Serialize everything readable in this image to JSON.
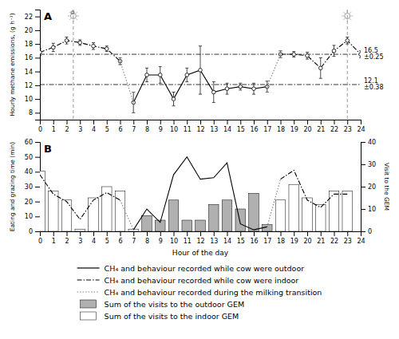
{
  "chart_data": [
    {
      "type": "line",
      "title": "A",
      "y_label": "Hourly methane emissions, (g h⁻¹)",
      "x": [
        0,
        1,
        2,
        3,
        4,
        5,
        6,
        7,
        8,
        9,
        10,
        11,
        12,
        13,
        14,
        15,
        16,
        17,
        18,
        19,
        20,
        21,
        22,
        23,
        24
      ],
      "xlim": [
        0,
        24
      ],
      "xticks": [
        0,
        1,
        2,
        3,
        4,
        5,
        6,
        7,
        8,
        9,
        10,
        11,
        12,
        13,
        14,
        15,
        16,
        17,
        18,
        19,
        20,
        21,
        22,
        23,
        24
      ],
      "ylim": [
        7,
        23
      ],
      "yticks": [
        8,
        10,
        12,
        14,
        16,
        18,
        20,
        22
      ],
      "series": [
        {
          "color": "black",
          "line_style": "solid",
          "marker": "circle",
          "values": [
            null,
            null,
            null,
            null,
            null,
            null,
            null,
            9.5,
            13.5,
            13.5,
            10.0,
            13.5,
            14.2,
            11.0,
            11.5,
            11.8,
            11.5,
            11.8,
            null,
            null,
            null,
            null,
            null,
            null,
            null
          ],
          "errors": [
            null,
            null,
            null,
            null,
            null,
            null,
            null,
            1.5,
            1.0,
            1.2,
            1.0,
            1.0,
            3.5,
            1.5,
            0.8,
            0.5,
            0.8,
            0.8,
            null,
            null,
            null,
            null,
            null,
            null,
            null
          ]
        },
        {
          "color": "black",
          "line_style": "dashdot",
          "marker": "circle",
          "values": [
            16.8,
            17.5,
            18.5,
            18.2,
            17.7,
            17.3,
            15.5,
            null,
            null,
            null,
            null,
            null,
            null,
            null,
            null,
            null,
            null,
            null,
            16.5,
            16.5,
            16.3,
            14.5,
            17.0,
            18.5,
            16.5
          ],
          "errors": [
            0.5,
            0.6,
            0.5,
            0.4,
            0.5,
            0.4,
            0.5,
            null,
            null,
            null,
            null,
            null,
            null,
            null,
            null,
            null,
            null,
            null,
            0.5,
            0.4,
            0.5,
            1.5,
            0.8,
            0.5,
            0.5
          ]
        },
        {
          "color": "gray",
          "line_style": "dotted",
          "marker": "none",
          "values": [
            null,
            null,
            null,
            null,
            null,
            null,
            15.5,
            9.5,
            null,
            null,
            null,
            null,
            null,
            null,
            null,
            null,
            null,
            11.8,
            16.5,
            null,
            null,
            null,
            null,
            null,
            null
          ],
          "errors": [
            null,
            null,
            null,
            null,
            null,
            null,
            0.5,
            1.5,
            null,
            null,
            null,
            null,
            null,
            null,
            null,
            null,
            null,
            0.8,
            0.5,
            null,
            null,
            null,
            null,
            null,
            null
          ]
        }
      ],
      "reference_lines": [
        {
          "axis": "y",
          "value": 16.5,
          "label": "16.5\n±0.25"
        },
        {
          "axis": "y",
          "value": 12.1,
          "label": "12.1\n±0.38"
        },
        {
          "axis": "x",
          "value": 2.5
        },
        {
          "axis": "x",
          "value": 23.0
        }
      ],
      "annotations": [
        {
          "text": "✿",
          "x": 2.45,
          "y": 22.5
        }
      ]
    },
    {
      "type": "line",
      "title": "B",
      "x_label": "Hour of the day",
      "y_label": "Eating and grazing time (min)",
      "y2_label": "Visit to the GEM",
      "x": [
        0,
        1,
        2,
        3,
        4,
        5,
        6,
        7,
        8,
        9,
        10,
        11,
        12,
        13,
        14,
        15,
        16,
        17,
        18,
        19,
        20,
        21,
        22,
        23
      ],
      "xlim": [
        0,
        24
      ],
      "xticks": [
        0,
        1,
        2,
        3,
        4,
        5,
        6,
        7,
        8,
        9,
        10,
        11,
        12,
        13,
        14,
        15,
        16,
        17,
        18,
        19,
        20,
        21,
        22,
        23,
        24
      ],
      "ylim": [
        0,
        60
      ],
      "yticks": [
        0,
        10,
        20,
        30,
        40,
        50,
        60
      ],
      "y2lim": [
        0,
        40
      ],
      "y2ticks": [
        0,
        10,
        20,
        30,
        40
      ],
      "legend": "bottom",
      "series": [
        {
          "name": "CH₄ and behaviour recorded while cow were outdoor",
          "type": "line",
          "color": "black",
          "line_style": "solid",
          "values": [
            null,
            null,
            null,
            null,
            null,
            null,
            null,
            1,
            15,
            6,
            38,
            50,
            35,
            36,
            46,
            5,
            1,
            3,
            null,
            null,
            null,
            null,
            null,
            null
          ]
        },
        {
          "name": "CH₄ and behaviour recorded while cow were indoor",
          "type": "line",
          "color": "black",
          "line_style": "dashdot",
          "values": [
            38,
            25,
            20,
            8,
            21,
            26,
            21,
            null,
            null,
            null,
            null,
            null,
            null,
            null,
            null,
            null,
            null,
            null,
            35,
            41,
            21,
            16,
            25,
            25
          ]
        },
        {
          "name": "CH₄ and behaviour recorded during the milking transition",
          "type": "line",
          "color": "gray",
          "line_style": "dotted",
          "values": [
            null,
            null,
            null,
            null,
            null,
            null,
            21,
            1,
            null,
            null,
            null,
            null,
            null,
            null,
            null,
            null,
            null,
            3,
            35,
            null,
            null,
            null,
            null,
            null
          ]
        },
        {
          "name": "Sum of the visits to the outdoor GEM",
          "type": "bar",
          "axis": "y2",
          "color": "#b0b0b0",
          "values": [
            0,
            0,
            0,
            0,
            0,
            0,
            0,
            0,
            7,
            5,
            14,
            5,
            5,
            12,
            14,
            10,
            17,
            3,
            0,
            0,
            0,
            0,
            0,
            0
          ]
        },
        {
          "name": "Sum of the visits to the indoor GEM",
          "type": "bar",
          "axis": "y2",
          "color": "white",
          "values": [
            27,
            18,
            14,
            1,
            15,
            20,
            18,
            1,
            0,
            0,
            0,
            0,
            0,
            0,
            0,
            0,
            0,
            0,
            14,
            21,
            15,
            12,
            18,
            18
          ]
        }
      ]
    }
  ]
}
